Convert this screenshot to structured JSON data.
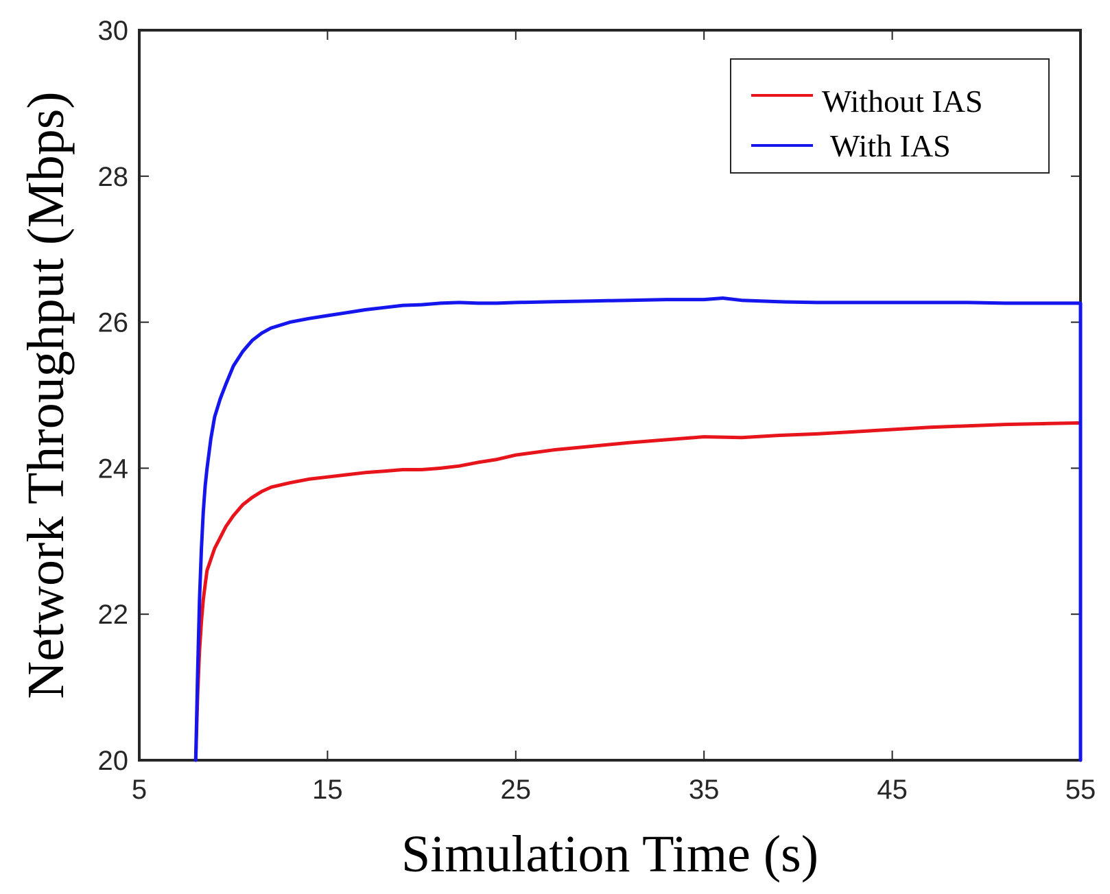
{
  "chart_data": {
    "type": "line",
    "title": "",
    "xlabel": "Simulation Time (s)",
    "ylabel": "Network Throughput (Mbps)",
    "xlim": [
      5,
      55
    ],
    "ylim": [
      20,
      30
    ],
    "xticks": [
      5,
      15,
      25,
      35,
      45,
      55
    ],
    "yticks": [
      20,
      22,
      24,
      26,
      28,
      30
    ],
    "grid": false,
    "legend_position": "top-right",
    "series": [
      {
        "name": "Without IAS",
        "color": "#e8141c",
        "x": [
          8.0,
          8.1,
          8.2,
          8.3,
          8.4,
          8.5,
          8.6,
          8.8,
          9.0,
          9.3,
          9.6,
          10.0,
          10.5,
          11.0,
          11.5,
          12.0,
          13.0,
          14.0,
          15.0,
          16.0,
          17.0,
          18.0,
          19.0,
          20.0,
          21.0,
          22.0,
          23.0,
          24.0,
          25.0,
          27.0,
          29.0,
          31.0,
          33.0,
          35.0,
          37.0,
          39.0,
          41.0,
          43.0,
          45.0,
          47.0,
          49.0,
          51.0,
          53.0,
          55.0
        ],
        "values": [
          20.0,
          20.9,
          21.5,
          21.9,
          22.2,
          22.4,
          22.6,
          22.75,
          22.9,
          23.05,
          23.2,
          23.35,
          23.5,
          23.6,
          23.68,
          23.74,
          23.8,
          23.85,
          23.88,
          23.91,
          23.94,
          23.96,
          23.98,
          23.98,
          24.0,
          24.03,
          24.08,
          24.12,
          24.18,
          24.25,
          24.3,
          24.35,
          24.39,
          24.43,
          24.42,
          24.45,
          24.47,
          24.5,
          24.53,
          24.56,
          24.58,
          24.6,
          24.61,
          24.62
        ]
      },
      {
        "name": "With IAS",
        "color": "#1515ee",
        "x": [
          8.0,
          8.1,
          8.2,
          8.3,
          8.4,
          8.5,
          8.6,
          8.8,
          9.0,
          9.3,
          9.6,
          10.0,
          10.5,
          11.0,
          11.5,
          12.0,
          13.0,
          14.0,
          15.0,
          16.0,
          17.0,
          18.0,
          19.0,
          20.0,
          21.0,
          22.0,
          23.0,
          24.0,
          25.0,
          27.0,
          29.0,
          31.0,
          33.0,
          35.0,
          36.0,
          37.0,
          39.0,
          41.0,
          43.0,
          45.0,
          47.0,
          49.0,
          51.0,
          53.0,
          55.0
        ],
        "values": [
          20.0,
          21.2,
          22.2,
          22.9,
          23.4,
          23.75,
          24.0,
          24.4,
          24.7,
          24.95,
          25.15,
          25.4,
          25.6,
          25.75,
          25.85,
          25.92,
          26.0,
          26.05,
          26.09,
          26.13,
          26.17,
          26.2,
          26.23,
          26.24,
          26.26,
          26.27,
          26.26,
          26.26,
          26.27,
          26.28,
          26.29,
          26.3,
          26.31,
          26.31,
          26.33,
          26.3,
          26.28,
          26.27,
          26.27,
          26.27,
          26.27,
          26.27,
          26.26,
          26.26,
          26.26
        ]
      }
    ]
  }
}
